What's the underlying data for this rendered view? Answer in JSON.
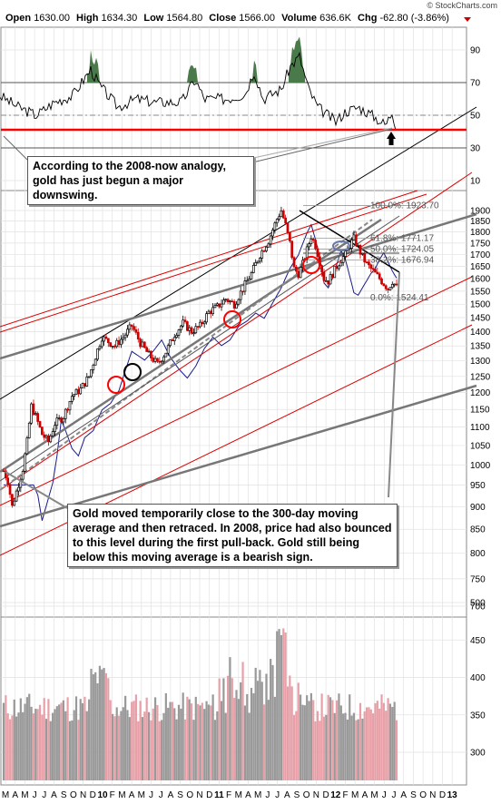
{
  "header": {
    "open_label": "Open",
    "open": "1630.00",
    "high_label": "High",
    "high": "1634.30",
    "low_label": "Low",
    "low": "1564.80",
    "close_label": "Close",
    "close": "1566.00",
    "volume_label": "Volume",
    "volume": "636.6K",
    "chg_label": "Chg",
    "chg": "-62.80 (-3.86%)",
    "watermark": "© StockCharts.com"
  },
  "annotations": {
    "rsi_note": "According to the 2008-now analogy, gold has just begun a major downswing.",
    "ma_note": "Gold moved temporarily close to the 300-day moving average and then retraced. In 2008, price had also bounced to this level during the first pull-back. Gold still being below this moving average is a bearish sign."
  },
  "chart_data": {
    "type": "candlestick",
    "panels": {
      "rsi": {
        "ticks": [
          10,
          30,
          50,
          70,
          90
        ]
      },
      "price": {
        "ticks": [
          700,
          750,
          800,
          850,
          900,
          950,
          1000,
          1050,
          1100,
          1150,
          1200,
          1250,
          1300,
          1350,
          1400,
          1450,
          1500,
          1550,
          1600,
          1650,
          1700,
          1750,
          1800,
          1850,
          1900
        ]
      },
      "volume": {
        "ticks": [
          300,
          350,
          400,
          450,
          500
        ]
      }
    },
    "x_months": [
      "M",
      "A",
      "M",
      "J",
      "J",
      "A",
      "S",
      "O",
      "N",
      "D",
      "10",
      "F",
      "M",
      "A",
      "M",
      "J",
      "J",
      "A",
      "S",
      "O",
      "N",
      "D",
      "11",
      "F",
      "M",
      "A",
      "M",
      "J",
      "J",
      "A",
      "S",
      "O",
      "N",
      "D",
      "12",
      "F",
      "M",
      "A",
      "M",
      "J",
      "J",
      "A",
      "S",
      "O",
      "N",
      "D",
      "13"
    ],
    "fib_labels": [
      {
        "text": "100.0%: 1923.70",
        "value": 1923.7
      },
      {
        "text": "61.8%: 1771.17",
        "value": 1771.17
      },
      {
        "text": "50.0%: 1724.05",
        "value": 1724.05
      },
      {
        "text": "38.2%: 1676.94",
        "value": 1676.94
      },
      {
        "text": "0.0%: 1524.41",
        "value": 1524.41
      }
    ],
    "colors": {
      "up_candle": "#000000",
      "down_candle": "#cc0000",
      "ma": "#1a1a8c",
      "channel_red": "#dd0000",
      "trend_gray": "#777777",
      "rsi_overbought_fill": "#4a7a4a",
      "vol_up": "#999999",
      "vol_down": "#e8a0a8"
    }
  }
}
